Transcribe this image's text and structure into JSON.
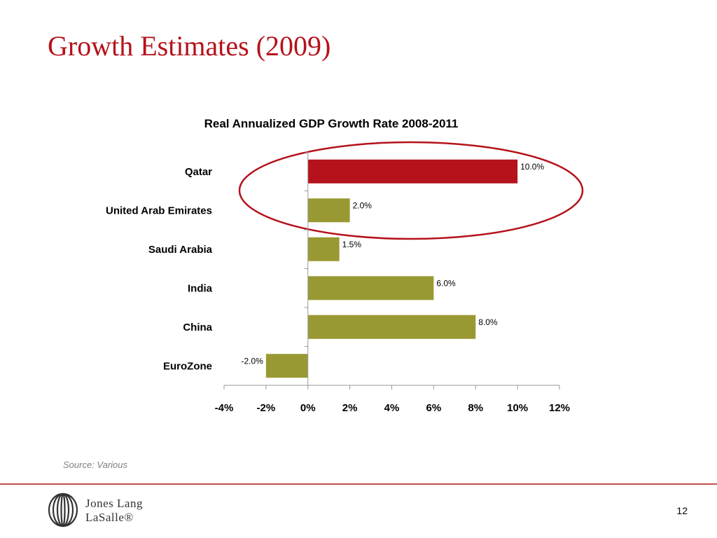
{
  "slide": {
    "title": "Growth Estimates (2009)",
    "source": "Source: Various",
    "page_number": "12",
    "logo_line1": "Jones Lang",
    "logo_line2": "LaSalle®"
  },
  "colors": {
    "highlight_bar": "#b5121b",
    "bar": "#999933",
    "title": "#b5121b",
    "ellipse": "#b5121b",
    "footer_rule": "#c0504d"
  },
  "chart_data": {
    "type": "bar",
    "orientation": "horizontal",
    "title": "Real Annualized GDP Growth Rate 2008-2011",
    "categories": [
      "Qatar",
      "United Arab Emirates",
      "Saudi Arabia",
      "India",
      "China",
      "EuroZone"
    ],
    "values": [
      10.0,
      2.0,
      1.5,
      6.0,
      8.0,
      -2.0
    ],
    "data_labels": [
      "10.0%",
      "2.0%",
      "1.5%",
      "6.0%",
      "8.0%",
      "-2.0%"
    ],
    "highlighted": [
      "Qatar"
    ],
    "xlim": [
      -4,
      12
    ],
    "xticks": [
      -4,
      -2,
      0,
      2,
      4,
      6,
      8,
      10,
      12
    ],
    "xtick_labels": [
      "-4%",
      "-2%",
      "0%",
      "2%",
      "4%",
      "6%",
      "8%",
      "10%",
      "12%"
    ],
    "xlabel": "",
    "ylabel": "",
    "grid": false,
    "legend": "none",
    "annotation": "ellipse around Qatar and United Arab Emirates"
  }
}
